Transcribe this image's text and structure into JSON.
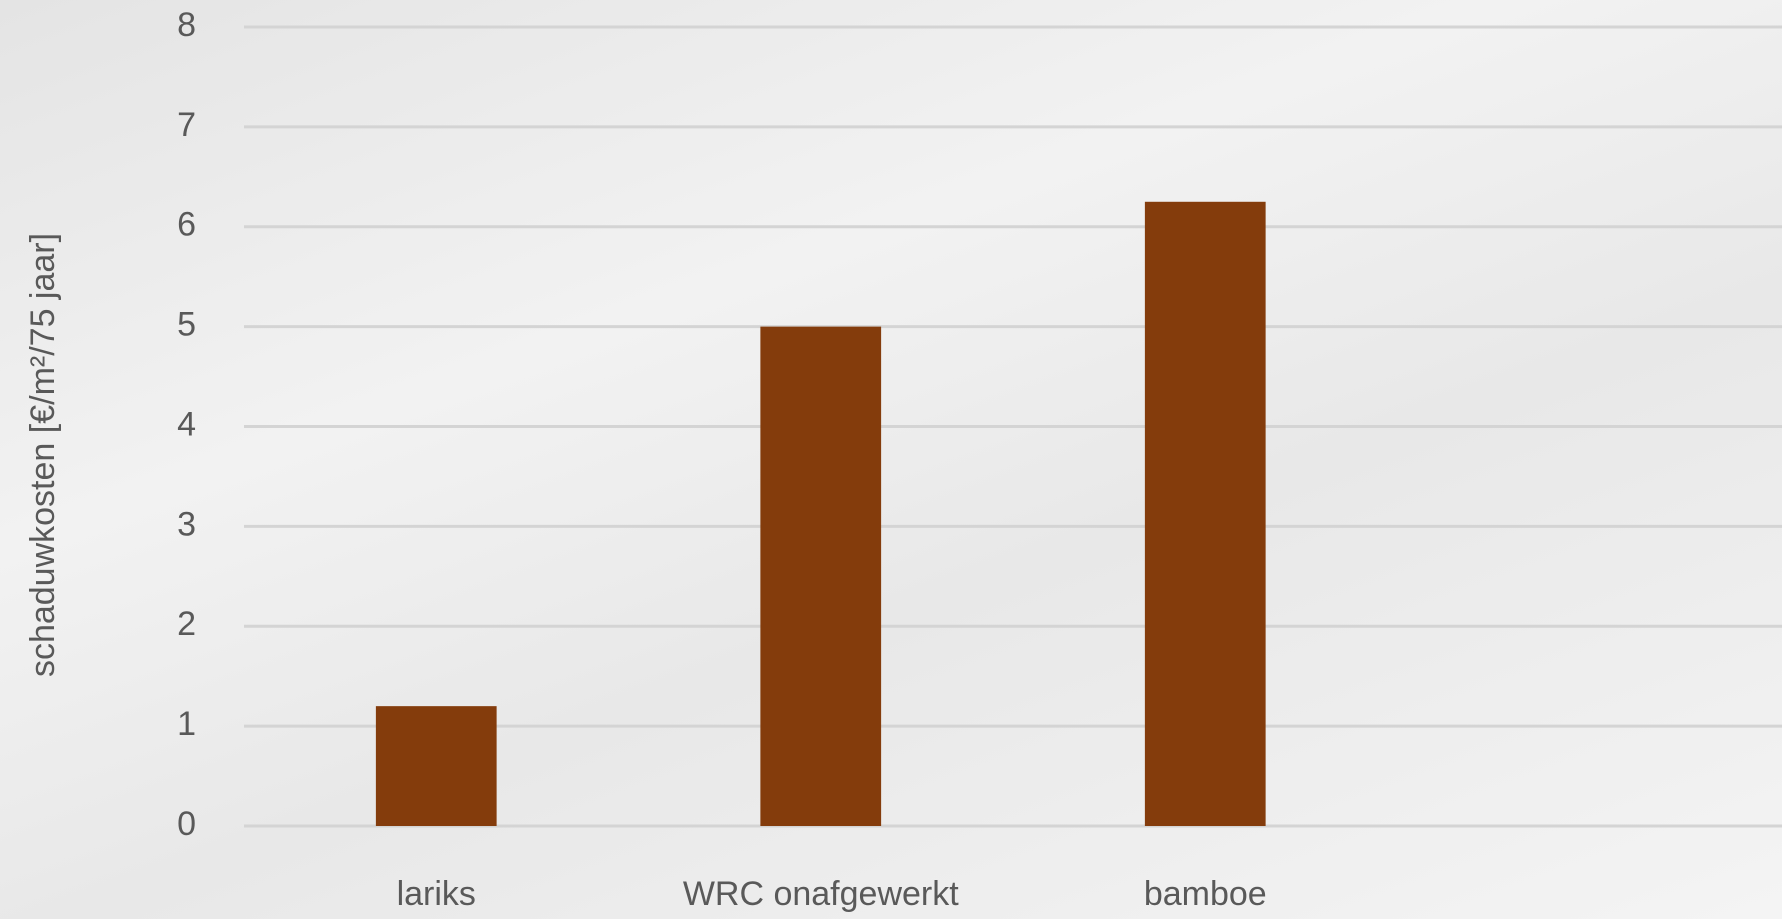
{
  "chart_data": {
    "type": "bar",
    "y_label": "schaduwkosten [€/m²/75 jaar]",
    "categories": [
      "lariks",
      "WRC onafgewerkt",
      "bamboe",
      null
    ],
    "values": [
      1.2,
      5,
      6.25,
      null
    ],
    "color": "#843c0c",
    "ylim": [
      0,
      8
    ],
    "yticks": [
      0,
      1,
      2,
      3,
      4,
      5,
      6,
      7,
      8
    ],
    "grid": true
  }
}
